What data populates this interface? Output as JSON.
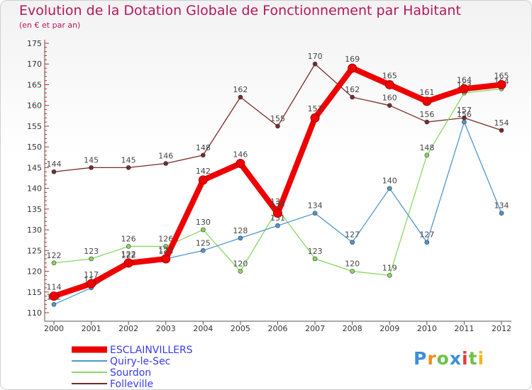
{
  "title": "Evolution de la Dotation Globale de Fonctionnement par Habitant",
  "subtitle": "(en € et par an)",
  "logo_text": "Proxiti",
  "chart_data": {
    "type": "line",
    "title": "Evolution de la Dotation Globale de Fonctionnement par Habitant",
    "subtitle": "(en € et par an)",
    "x": [
      "2000",
      "2001",
      "2002",
      "2003",
      "2004",
      "2005",
      "2006",
      "2007",
      "2008",
      "2009",
      "2010",
      "2011",
      "2012"
    ],
    "ylim": [
      110,
      175
    ],
    "yticks": [
      110,
      115,
      120,
      125,
      130,
      135,
      140,
      145,
      150,
      155,
      160,
      165,
      170,
      175
    ],
    "grid": false,
    "legend_position": "bottom-left",
    "series": [
      {
        "name": "Folleville",
        "color": "#7a2a2a",
        "values": [
          144,
          145,
          145,
          146,
          148,
          162,
          155,
          170,
          162,
          160,
          156,
          157,
          154
        ],
        "labels": [
          "144",
          "145",
          "145",
          "146",
          "148",
          "162",
          "155",
          "170",
          "162",
          "160",
          "156",
          "157",
          "154"
        ]
      },
      {
        "name": "Sourdon",
        "color": "#88d861",
        "values": [
          122,
          123,
          126,
          126,
          130,
          120,
          135,
          123,
          120,
          119,
          148,
          163,
          164
        ],
        "labels": [
          "122",
          "123",
          "126",
          "126",
          "130",
          "120",
          "135",
          "123",
          "120",
          "119",
          "148",
          "163",
          "164"
        ]
      },
      {
        "name": "Quiry-le-Sec",
        "color": "#4f97cf",
        "values": [
          112,
          116,
          122,
          123,
          125,
          128,
          131,
          134,
          127,
          140,
          127,
          156,
          134
        ],
        "labels": [
          "112",
          "116",
          "122",
          "123",
          "125",
          "128",
          "131",
          "134",
          "127",
          "140",
          "127",
          "156",
          "134"
        ]
      },
      {
        "name": "ESCLAINVILLERS",
        "color": "#ee0000",
        "values": [
          114,
          117,
          122,
          123,
          142,
          146,
          134,
          157,
          169,
          165,
          161,
          164,
          165
        ],
        "labels": [
          "114",
          "117",
          "122",
          "123",
          "142",
          "146",
          "134",
          "157",
          "169",
          "165",
          "161",
          "164",
          "165"
        ]
      }
    ],
    "legend": [
      {
        "name": "ESCLAINVILLERS",
        "color": "#ee0000",
        "text_color": "#3a3af0"
      },
      {
        "name": "Quiry-le-Sec",
        "color": "#4f97cf",
        "text_color": "#3a3af0"
      },
      {
        "name": "Sourdon",
        "color": "#88d861",
        "text_color": "#3a3af0"
      },
      {
        "name": "Folleville",
        "color": "#7a2a2a",
        "text_color": "#3a3af0"
      }
    ]
  }
}
